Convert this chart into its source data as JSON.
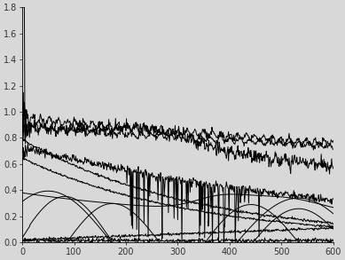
{
  "xlim": [
    0,
    600
  ],
  "ylim": [
    0,
    1.8
  ],
  "yticks": [
    0,
    0.2,
    0.4,
    0.6,
    0.8,
    1.0,
    1.2,
    1.4,
    1.6,
    1.8
  ],
  "xticks": [
    0,
    100,
    200,
    300,
    400,
    500,
    600
  ],
  "bg_color": "#d8d8d8",
  "line_color": "#000000",
  "n_points": 601
}
